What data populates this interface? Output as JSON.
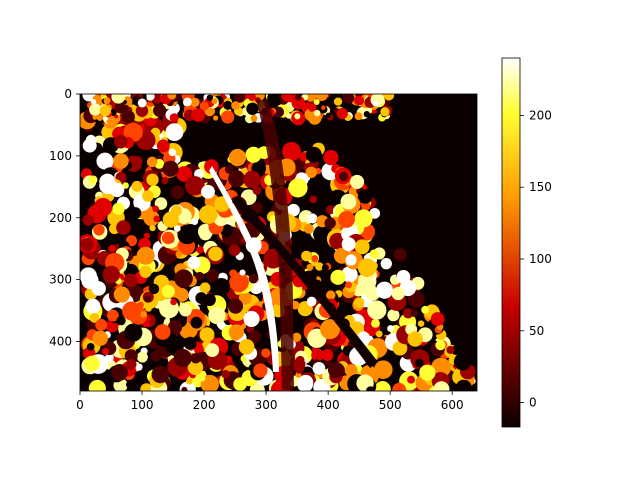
{
  "chart_data": {
    "type": "heatmap",
    "title": "",
    "xlabel": "",
    "ylabel": "",
    "image_size": [
      640,
      480
    ],
    "xlim": [
      0,
      640
    ],
    "ylim": [
      480,
      0
    ],
    "x_ticks": [
      0,
      100,
      200,
      300,
      400,
      500,
      600
    ],
    "y_ticks": [
      0,
      100,
      200,
      300,
      400
    ],
    "colorbar": {
      "colormap": "hot",
      "range": [
        -17,
        240
      ],
      "ticks": [
        0,
        50,
        100,
        150,
        200
      ]
    },
    "regions": [
      {
        "label": "background",
        "value": -17
      },
      {
        "label": "left-crack",
        "value": 240
      },
      {
        "label": "center-divider",
        "value": 15
      },
      {
        "label": "right-crack",
        "value": -10
      },
      {
        "label": "speckle-field",
        "value_range": [
          -17,
          240
        ]
      }
    ],
    "colors": {
      "stops": [
        "#0b0000",
        "#4a0000",
        "#9a0000",
        "#e00000",
        "#ff4400",
        "#ff8c00",
        "#ffc400",
        "#ffff33",
        "#ffffa0",
        "#ffffff"
      ]
    }
  }
}
